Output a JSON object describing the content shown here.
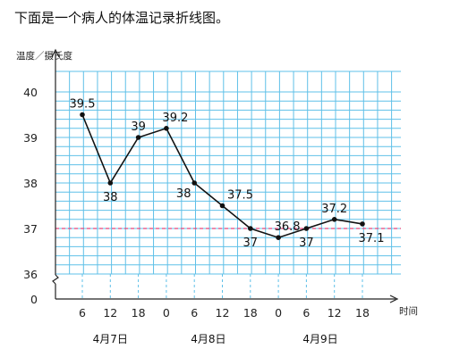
{
  "chart_data": {
    "type": "line",
    "title": "下面是一个病人的体温记录折线图。",
    "ylabel": "温度／摄氏度",
    "xlabel": "时间",
    "ylim": [
      36,
      40
    ],
    "y_break_label": "0",
    "yticks": [
      "40",
      "39",
      "38",
      "37",
      "36"
    ],
    "grid": true,
    "x": [
      "6",
      "12",
      "18",
      "0",
      "6",
      "12",
      "18",
      "0",
      "6",
      "12",
      "18"
    ],
    "dates": [
      {
        "label": "4月7日",
        "start": 0,
        "end": 2
      },
      {
        "label": "4月8日",
        "start": 3,
        "end": 6
      },
      {
        "label": "4月9日",
        "start": 7,
        "end": 10
      }
    ],
    "series": [
      {
        "values": [
          39.5,
          38,
          39,
          39.2,
          38,
          37.5,
          37,
          36.8,
          37,
          37.2,
          37.1
        ],
        "labels": [
          "39.5",
          "38",
          "39",
          "39.2",
          "38",
          "37.5",
          "37",
          "36.8",
          "37",
          "37.2",
          "37.1"
        ]
      }
    ],
    "reference_line": {
      "value": 37,
      "color": "#e8457a"
    },
    "colors": {
      "grid": "#5fc0e8",
      "line": "#111111",
      "reference": "#e8457a"
    }
  }
}
